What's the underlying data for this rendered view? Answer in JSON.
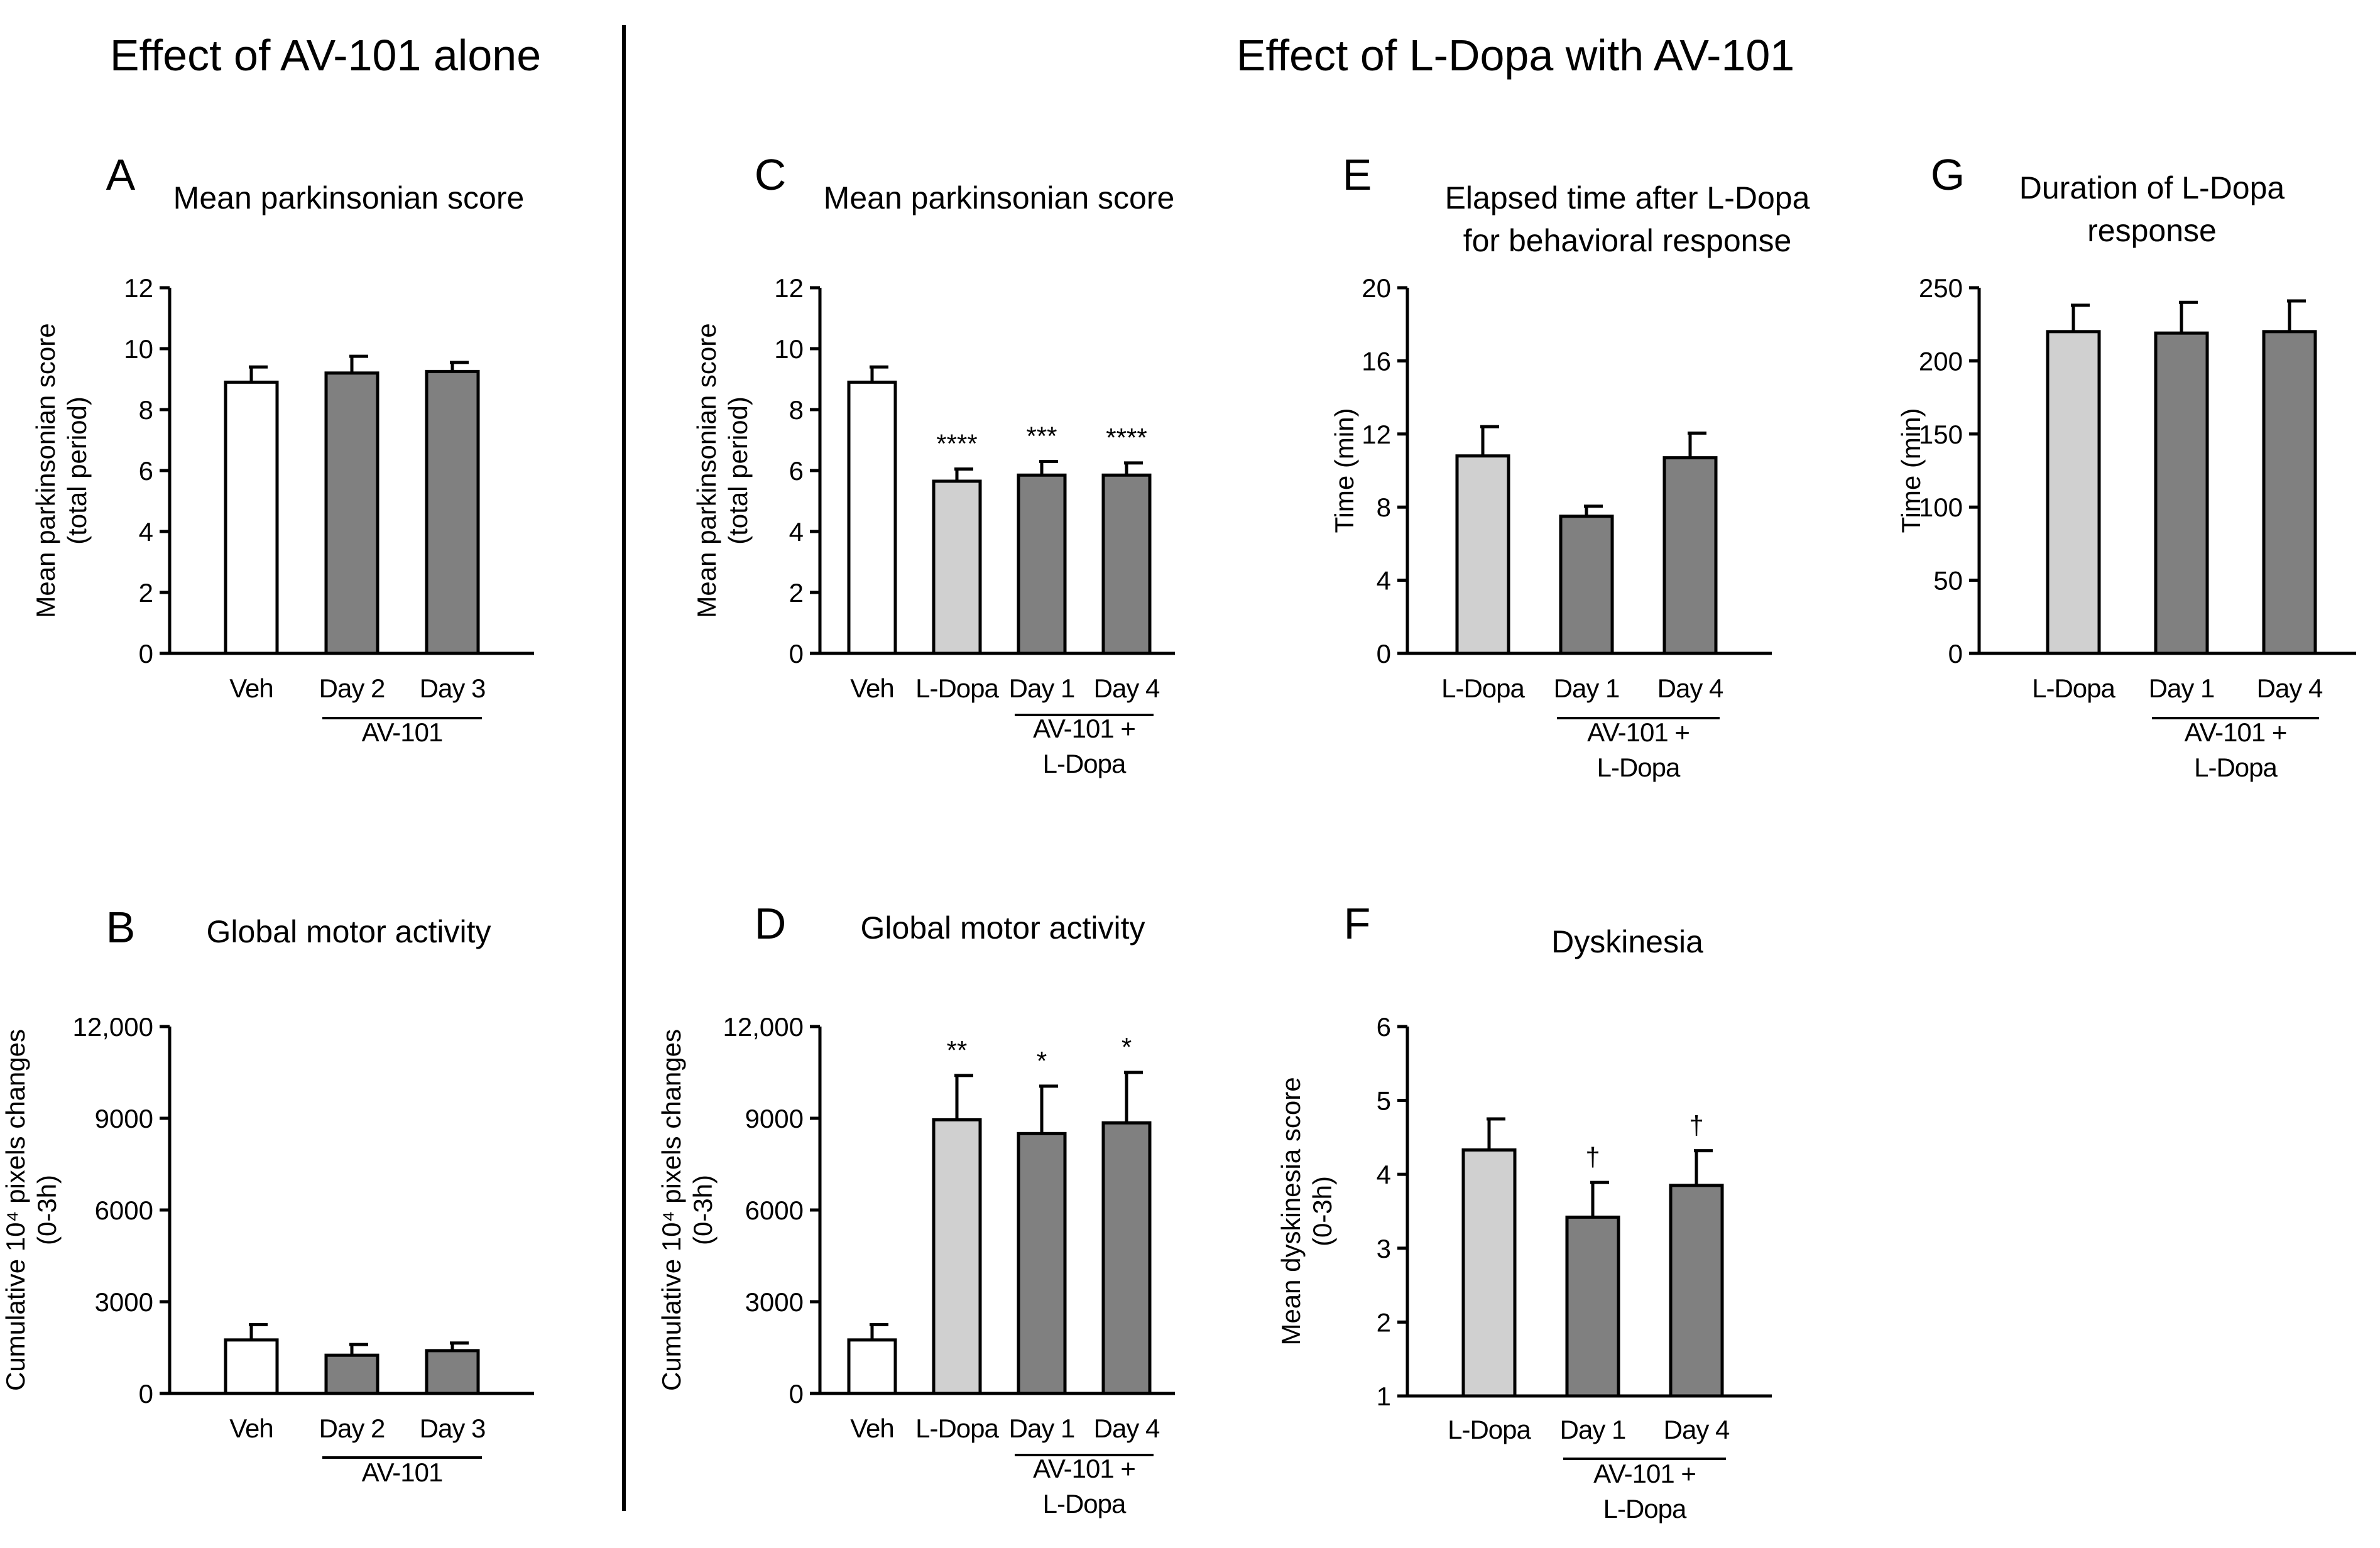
{
  "section_titles": {
    "left": "Effect of AV-101 alone",
    "right": "Effect of L-Dopa with AV-101"
  },
  "colors": {
    "veh": "#ffffff",
    "ldopa": "#d0d0d0",
    "av101": "#808080",
    "stroke": "#000000"
  },
  "chart_data": [
    {
      "id": "A",
      "letter": "A",
      "type": "bar",
      "title": "Mean parkinsonian score",
      "ylabel": [
        "Mean parkinsonian score",
        "(total period)"
      ],
      "ylim": [
        0,
        12
      ],
      "yticks": [
        0,
        2,
        4,
        6,
        8,
        10,
        12
      ],
      "yticklabels": [
        "0",
        "2",
        "4",
        "6",
        "8",
        "10",
        "12"
      ],
      "categories": [
        "Veh",
        "Day 2",
        "Day 3"
      ],
      "values": [
        8.9,
        9.2,
        9.25
      ],
      "errors": [
        0.5,
        0.55,
        0.3
      ],
      "fills": [
        "veh",
        "av101",
        "av101"
      ],
      "significance": [
        "",
        "",
        ""
      ],
      "group_label": [
        "AV-101"
      ],
      "group_span": [
        1,
        2
      ]
    },
    {
      "id": "B",
      "letter": "B",
      "type": "bar",
      "title": "Global motor activity",
      "ylabel": [
        "Cumulative 10⁴ pixels changes",
        "(0-3h)"
      ],
      "ylim": [
        0,
        12000
      ],
      "yticks": [
        0,
        3000,
        6000,
        9000,
        12000
      ],
      "yticklabels": [
        "0",
        "3000",
        "6000",
        "9000",
        "12,000"
      ],
      "categories": [
        "Veh",
        "Day 2",
        "Day 3"
      ],
      "values": [
        1750,
        1250,
        1400
      ],
      "errors": [
        500,
        350,
        250
      ],
      "fills": [
        "veh",
        "av101",
        "av101"
      ],
      "significance": [
        "",
        "",
        ""
      ],
      "group_label": [
        "AV-101"
      ],
      "group_span": [
        1,
        2
      ]
    },
    {
      "id": "C",
      "letter": "C",
      "type": "bar",
      "title": "Mean parkinsonian score",
      "ylabel": [
        "Mean parkinsonian score",
        "(total period)"
      ],
      "ylim": [
        0,
        12
      ],
      "yticks": [
        0,
        2,
        4,
        6,
        8,
        10,
        12
      ],
      "yticklabels": [
        "0",
        "2",
        "4",
        "6",
        "8",
        "10",
        "12"
      ],
      "categories": [
        "Veh",
        "L-Dopa",
        "Day 1",
        "Day 4"
      ],
      "values": [
        8.9,
        5.65,
        5.85,
        5.85
      ],
      "errors": [
        0.5,
        0.4,
        0.45,
        0.4
      ],
      "fills": [
        "veh",
        "ldopa",
        "av101",
        "av101"
      ],
      "significance": [
        "",
        "****",
        "***",
        "****"
      ],
      "group_label": [
        "AV-101 +",
        "L-Dopa"
      ],
      "group_span": [
        2,
        3
      ]
    },
    {
      "id": "D",
      "letter": "D",
      "type": "bar",
      "title": "Global motor activity",
      "ylabel": [
        "Cumulative 10⁴ pixels changes",
        "(0-3h)"
      ],
      "ylim": [
        0,
        12000
      ],
      "yticks": [
        0,
        3000,
        6000,
        9000,
        12000
      ],
      "yticklabels": [
        "0",
        "3000",
        "6000",
        "9000",
        "12,000"
      ],
      "categories": [
        "Veh",
        "L-Dopa",
        "Day 1",
        "Day 4"
      ],
      "values": [
        1750,
        8950,
        8500,
        8850
      ],
      "errors": [
        500,
        1450,
        1550,
        1650
      ],
      "fills": [
        "veh",
        "ldopa",
        "av101",
        "av101"
      ],
      "significance": [
        "",
        "**",
        "*",
        "*"
      ],
      "group_label": [
        "AV-101 +",
        "L-Dopa"
      ],
      "group_span": [
        2,
        3
      ]
    },
    {
      "id": "E",
      "letter": "E",
      "type": "bar",
      "title": [
        "Elapsed time after L-Dopa",
        "for behavioral response"
      ],
      "ylabel": [
        "Time (min)"
      ],
      "ylim": [
        0,
        20
      ],
      "yticks": [
        0,
        4,
        8,
        12,
        16,
        20
      ],
      "yticklabels": [
        "0",
        "4",
        "8",
        "12",
        "16",
        "20"
      ],
      "categories": [
        "L-Dopa",
        "Day 1",
        "Day 4"
      ],
      "values": [
        10.8,
        7.5,
        10.7
      ],
      "errors": [
        1.6,
        0.55,
        1.35
      ],
      "fills": [
        "ldopa",
        "av101",
        "av101"
      ],
      "significance": [
        "",
        "",
        ""
      ],
      "group_label": [
        "AV-101 +",
        "L-Dopa"
      ],
      "group_span": [
        1,
        2
      ]
    },
    {
      "id": "F",
      "letter": "F",
      "type": "bar",
      "title": "Dyskinesia",
      "ylabel": [
        "Mean dyskinesia score",
        "(0-3h)"
      ],
      "ylim": [
        1,
        6
      ],
      "yticks": [
        1,
        2,
        3,
        4,
        5,
        6
      ],
      "yticklabels": [
        "1",
        "2",
        "3",
        "4",
        "5",
        "6"
      ],
      "categories": [
        "L-Dopa",
        "Day 1",
        "Day 4"
      ],
      "values": [
        4.33,
        3.42,
        3.85
      ],
      "errors": [
        0.42,
        0.47,
        0.47
      ],
      "fills": [
        "ldopa",
        "av101",
        "av101"
      ],
      "significance": [
        "",
        "†",
        "†"
      ],
      "group_label": [
        "AV-101 +",
        "L-Dopa"
      ],
      "group_span": [
        1,
        2
      ]
    },
    {
      "id": "G",
      "letter": "G",
      "type": "bar",
      "title": [
        "Duration of L-Dopa",
        "response"
      ],
      "ylabel": [
        "Time (min)"
      ],
      "ylim": [
        0,
        250
      ],
      "yticks": [
        0,
        50,
        100,
        150,
        200,
        250
      ],
      "yticklabels": [
        "0",
        "50",
        "100",
        "150",
        "200",
        "250"
      ],
      "categories": [
        "L-Dopa",
        "Day 1",
        "Day 4"
      ],
      "values": [
        220,
        219,
        220
      ],
      "errors": [
        18,
        21,
        21
      ],
      "fills": [
        "ldopa",
        "av101",
        "av101"
      ],
      "significance": [
        "",
        "",
        ""
      ],
      "group_label": [
        "AV-101 +",
        "L-Dopa"
      ],
      "group_span": [
        1,
        2
      ]
    }
  ]
}
